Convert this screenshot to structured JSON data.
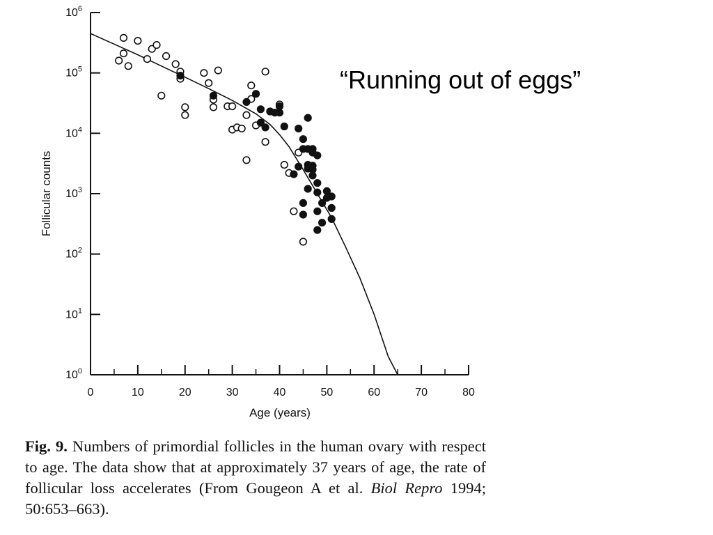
{
  "slide_title": "“Running out of eggs”",
  "caption": {
    "fig_label": "Fig. 9.",
    "text_1": " Numbers of primordial follicles in the human ovary with respect to age. The data show that at approximately 37 years of age, the rate of follicular loss accelerates (From Gougeon A et al. ",
    "journal": "Biol Repro",
    "text_2": " 1994; 50:653–663)."
  },
  "chart_data": {
    "type": "scatter",
    "xlabel": "Age (years)",
    "ylabel": "Follicular counts",
    "xlim": [
      0,
      80
    ],
    "ylim_log10": [
      0,
      6
    ],
    "y_scale": "log",
    "x_ticks": [
      "0",
      "10",
      "20",
      "30",
      "40",
      "50",
      "60",
      "70",
      "80"
    ],
    "y_ticks": [
      {
        "base": "10",
        "exp": "0"
      },
      {
        "base": "10",
        "exp": "1"
      },
      {
        "base": "10",
        "exp": "2"
      },
      {
        "base": "10",
        "exp": "3"
      },
      {
        "base": "10",
        "exp": "4"
      },
      {
        "base": "10",
        "exp": "5"
      },
      {
        "base": "10",
        "exp": "6"
      }
    ],
    "series": [
      {
        "marker": "open-circle",
        "points": [
          [
            7,
            380000
          ],
          [
            6,
            160000
          ],
          [
            7,
            210000
          ],
          [
            8,
            130000
          ],
          [
            10,
            340000
          ],
          [
            12,
            170000
          ],
          [
            13,
            250000
          ],
          [
            14,
            290000
          ],
          [
            16,
            190000
          ],
          [
            18,
            140000
          ],
          [
            19,
            105000
          ],
          [
            19,
            80000
          ],
          [
            15,
            42000
          ],
          [
            20,
            27000
          ],
          [
            20,
            20000
          ],
          [
            24,
            100000
          ],
          [
            25,
            68000
          ],
          [
            26,
            36000
          ],
          [
            26,
            27000
          ],
          [
            27,
            110000
          ],
          [
            29,
            28000
          ],
          [
            30,
            28000
          ],
          [
            30,
            11500
          ],
          [
            31,
            12500
          ],
          [
            32,
            12000
          ],
          [
            33,
            20000
          ],
          [
            33,
            3600
          ],
          [
            34,
            37000
          ],
          [
            34,
            62000
          ],
          [
            35,
            13500
          ],
          [
            37,
            105000
          ],
          [
            37,
            7200
          ],
          [
            40,
            30000
          ],
          [
            41,
            3000
          ],
          [
            42,
            2200
          ],
          [
            43,
            510
          ],
          [
            44,
            4800
          ],
          [
            45,
            160
          ]
        ]
      },
      {
        "marker": "filled-circle",
        "points": [
          [
            19,
            90000
          ],
          [
            26,
            42000
          ],
          [
            33,
            33000
          ],
          [
            35,
            45000
          ],
          [
            36,
            25000
          ],
          [
            36,
            15000
          ],
          [
            37,
            12500
          ],
          [
            38,
            23000
          ],
          [
            39,
            22000
          ],
          [
            40,
            28000
          ],
          [
            40,
            22000
          ],
          [
            41,
            13000
          ],
          [
            43,
            2100
          ],
          [
            44,
            12000
          ],
          [
            44,
            2800
          ],
          [
            45,
            8000
          ],
          [
            45,
            5500
          ],
          [
            45,
            700
          ],
          [
            45,
            450
          ],
          [
            46,
            18000
          ],
          [
            46,
            5500
          ],
          [
            46,
            3000
          ],
          [
            46,
            2600
          ],
          [
            46,
            1200
          ],
          [
            47,
            5500
          ],
          [
            47,
            4800
          ],
          [
            47,
            2900
          ],
          [
            47,
            2500
          ],
          [
            47,
            2000
          ],
          [
            48,
            4300
          ],
          [
            48,
            1500
          ],
          [
            48,
            1050
          ],
          [
            48,
            510
          ],
          [
            48,
            250
          ],
          [
            49,
            700
          ],
          [
            49,
            330
          ],
          [
            50,
            1100
          ],
          [
            50,
            850
          ],
          [
            51,
            900
          ],
          [
            51,
            580
          ],
          [
            51,
            380
          ]
        ]
      }
    ],
    "fit_curve": {
      "style": "solid-line",
      "points": [
        [
          0,
          450000
        ],
        [
          5,
          300000
        ],
        [
          10,
          200000
        ],
        [
          15,
          130000
        ],
        [
          20,
          85000
        ],
        [
          25,
          55000
        ],
        [
          30,
          35000
        ],
        [
          35,
          21000
        ],
        [
          38,
          14000
        ],
        [
          40,
          9500
        ],
        [
          42,
          6000
        ],
        [
          45,
          2500
        ],
        [
          48,
          1000
        ],
        [
          51,
          400
        ],
        [
          54,
          130
        ],
        [
          57,
          40
        ],
        [
          60,
          10
        ],
        [
          63,
          2
        ],
        [
          65,
          1
        ]
      ]
    }
  }
}
